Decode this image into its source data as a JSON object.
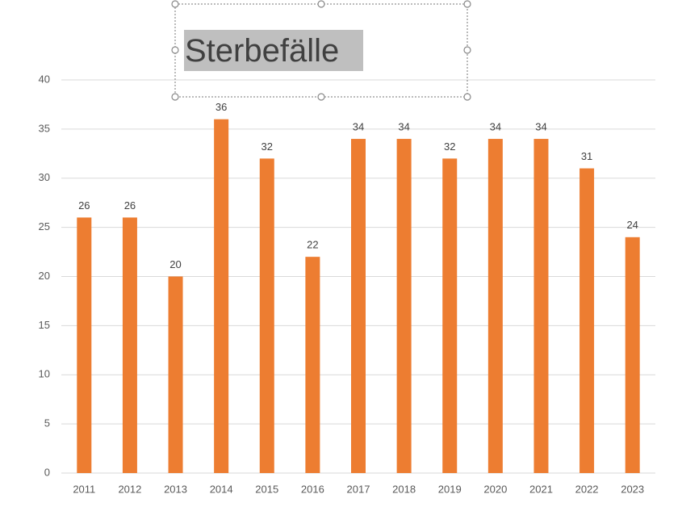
{
  "chart_data": {
    "type": "bar",
    "title": "Sterbefälle",
    "categories": [
      "2011",
      "2012",
      "2013",
      "2014",
      "2015",
      "2016",
      "2017",
      "2018",
      "2019",
      "2020",
      "2021",
      "2022",
      "2023"
    ],
    "values": [
      26,
      26,
      20,
      36,
      32,
      22,
      34,
      34,
      32,
      34,
      34,
      31,
      24
    ],
    "color": "#ed7d31",
    "ylim": [
      0,
      40
    ],
    "yticks": [
      0,
      5,
      10,
      15,
      20,
      25,
      30,
      35,
      40
    ],
    "grid": true
  }
}
